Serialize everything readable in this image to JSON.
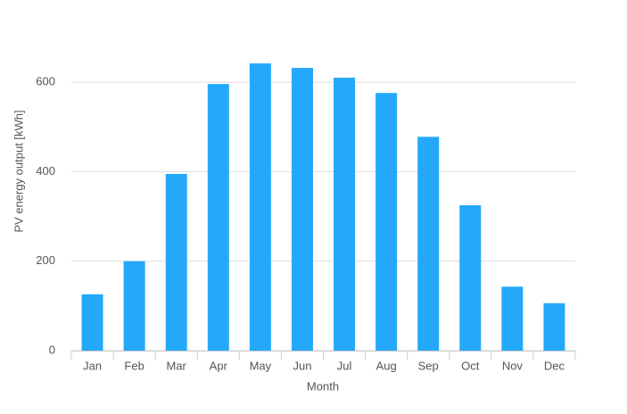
{
  "chart_data": {
    "type": "bar",
    "x_label": "Month",
    "y_label": "PV energy output [kWh]",
    "categories": [
      "Jan",
      "Feb",
      "Mar",
      "Apr",
      "May",
      "Jun",
      "Jul",
      "Aug",
      "Sep",
      "Oct",
      "Nov",
      "Dec"
    ],
    "values": [
      126,
      200,
      395,
      596,
      642,
      632,
      610,
      576,
      478,
      325,
      143,
      106
    ],
    "color": "#24a9fa",
    "ylim": [
      0,
      700
    ],
    "yticks": [
      0,
      200,
      400,
      600
    ],
    "grid": true
  }
}
